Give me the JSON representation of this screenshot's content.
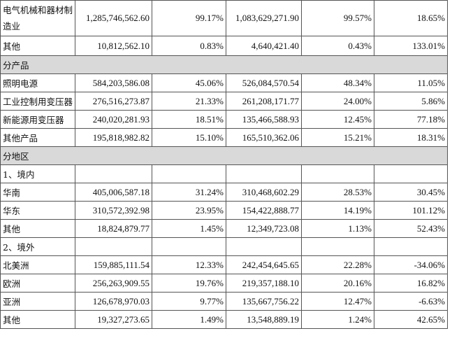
{
  "rows": [
    {
      "type": "data",
      "label": "电气机械和器材制造业",
      "values": [
        "1,285,746,562.60",
        "99.17%",
        "1,083,629,271.90",
        "99.57%",
        "18.65%"
      ]
    },
    {
      "type": "data",
      "label": "其他",
      "values": [
        "10,812,562.10",
        "0.83%",
        "4,640,421.40",
        "0.43%",
        "133.01%"
      ]
    },
    {
      "type": "section",
      "label": "分产品"
    },
    {
      "type": "data",
      "label": "照明电源",
      "values": [
        "584,203,586.08",
        "45.06%",
        "526,084,570.54",
        "48.34%",
        "11.05%"
      ]
    },
    {
      "type": "data",
      "label": "工业控制用变压器",
      "values": [
        "276,516,273.87",
        "21.33%",
        "261,208,171.77",
        "24.00%",
        "5.86%"
      ]
    },
    {
      "type": "data",
      "label": "新能源用变压器",
      "values": [
        "240,020,281.93",
        "18.51%",
        "135,466,588.93",
        "12.45%",
        "77.18%"
      ]
    },
    {
      "type": "data",
      "label": "其他产品",
      "values": [
        "195,818,982.82",
        "15.10%",
        "165,510,362.06",
        "15.21%",
        "18.31%"
      ]
    },
    {
      "type": "section",
      "label": "分地区"
    },
    {
      "type": "data",
      "label": "1、境内",
      "values": [
        "",
        "",
        "",
        "",
        ""
      ]
    },
    {
      "type": "data",
      "label": "华南",
      "values": [
        "405,006,587.18",
        "31.24%",
        "310,468,602.29",
        "28.53%",
        "30.45%"
      ]
    },
    {
      "type": "data",
      "label": "华东",
      "values": [
        "310,572,392.98",
        "23.95%",
        "154,422,888.77",
        "14.19%",
        "101.12%"
      ]
    },
    {
      "type": "data",
      "label": "其他",
      "values": [
        "18,824,879.77",
        "1.45%",
        "12,349,723.08",
        "1.13%",
        "52.43%"
      ]
    },
    {
      "type": "data",
      "label": "2、境外",
      "values": [
        "",
        "",
        "",
        "",
        ""
      ]
    },
    {
      "type": "data",
      "label": "北美洲",
      "values": [
        "159,885,111.54",
        "12.33%",
        "242,454,645.65",
        "22.28%",
        "-34.06%"
      ]
    },
    {
      "type": "data",
      "label": "欧洲",
      "values": [
        "256,263,909.55",
        "19.76%",
        "219,357,188.10",
        "20.16%",
        "16.82%"
      ]
    },
    {
      "type": "data",
      "label": "亚洲",
      "values": [
        "126,678,970.03",
        "9.77%",
        "135,667,756.22",
        "12.47%",
        "-6.63%"
      ]
    },
    {
      "type": "data",
      "label": "其他",
      "values": [
        "19,327,273.65",
        "1.49%",
        "13,548,889.19",
        "1.24%",
        "42.65%"
      ]
    }
  ],
  "colors": {
    "border": "#555555",
    "section_bg": "#d9d9d9",
    "text": "#111111"
  }
}
